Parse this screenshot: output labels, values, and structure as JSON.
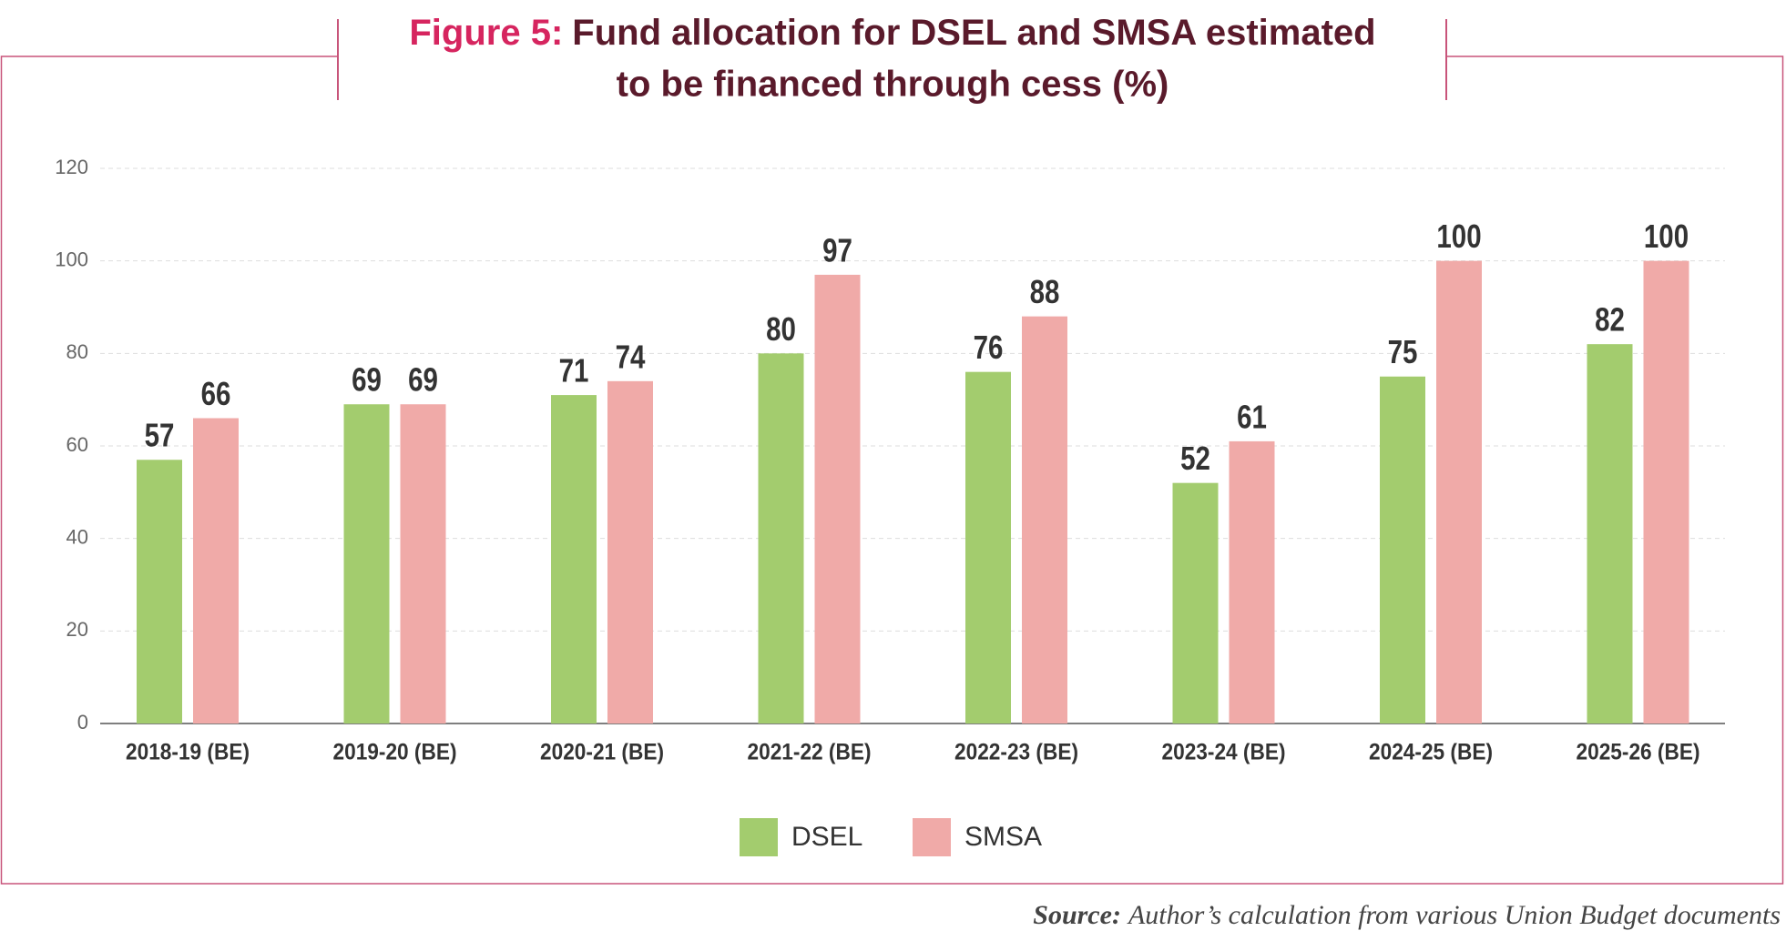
{
  "chart_data": {
    "type": "bar",
    "title_label": "Figure 5:",
    "title": "Fund allocation for DSEL and SMSA estimated to be financed through cess (%)",
    "categories": [
      "2018-19 (BE)",
      "2019-20 (BE)",
      "2020-21 (BE)",
      "2021-22 (BE)",
      "2022-23 (BE)",
      "2023-24 (BE)",
      "2024-25 (BE)",
      "2025-26 (BE)"
    ],
    "series": [
      {
        "name": "DSEL",
        "color": "#a3cc6e",
        "values": [
          57,
          69,
          71,
          80,
          76,
          52,
          75,
          82
        ]
      },
      {
        "name": "SMSA",
        "color": "#f0aaa8",
        "values": [
          66,
          69,
          74,
          97,
          88,
          61,
          100,
          100
        ]
      }
    ],
    "ylim": [
      0,
      120
    ],
    "yticks": [
      0,
      20,
      40,
      60,
      80,
      100,
      120
    ],
    "grid": true,
    "legend": "bottom",
    "source_label": "Source:",
    "source": "Author’s calculation from various Union Budget documents"
  }
}
